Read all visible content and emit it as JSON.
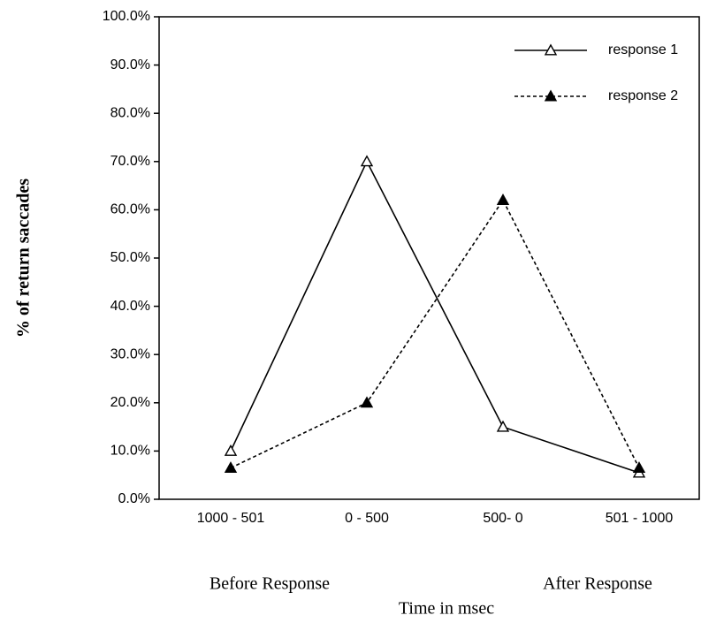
{
  "chart_data": {
    "type": "line",
    "y_label": "% of return saccades",
    "x_label": "Time in msec",
    "annotations": [
      "Before Response",
      "After Response"
    ],
    "categories": [
      "1000 - 501",
      "0 - 500",
      "500- 0",
      "501 - 1000"
    ],
    "series": [
      {
        "name": "response 1",
        "color": "#000000",
        "line_style": "solid",
        "marker": "triangle-open",
        "values": [
          10,
          70,
          15,
          5.5
        ]
      },
      {
        "name": "response 2",
        "color": "#000000",
        "line_style": "dashed",
        "marker": "triangle-filled",
        "values": [
          6.5,
          20,
          62,
          6.5
        ]
      }
    ],
    "ylim": [
      0,
      100
    ],
    "yticks": [
      {
        "value": 0,
        "label": "0.0%"
      },
      {
        "value": 10,
        "label": "10.0%"
      },
      {
        "value": 20,
        "label": "20.0%"
      },
      {
        "value": 30,
        "label": "30.0%"
      },
      {
        "value": 40,
        "label": "40.0%"
      },
      {
        "value": 50,
        "label": "50.0%"
      },
      {
        "value": 60,
        "label": "60.0%"
      },
      {
        "value": 70,
        "label": "70.0%"
      },
      {
        "value": 80,
        "label": "80.0%"
      },
      {
        "value": 90,
        "label": "90.0%"
      },
      {
        "value": 100,
        "label": "100.0%"
      }
    ],
    "legend": "upper right"
  }
}
